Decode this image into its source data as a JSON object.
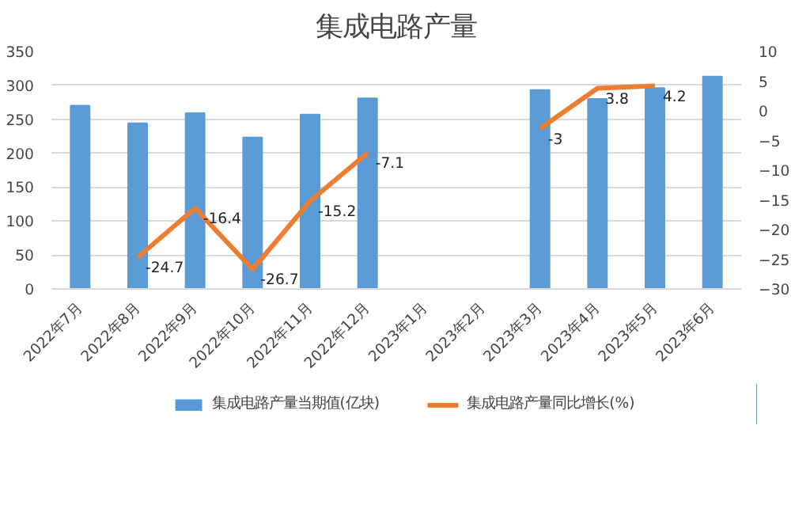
{
  "chart_data": {
    "type": "bar",
    "title": "集成电路产量",
    "categories": [
      "2022年7月",
      "2022年8月",
      "2022年9月",
      "2022年10月",
      "2022年11月",
      "2022年12月",
      "2023年1月",
      "2023年2月",
      "2023年3月",
      "2023年4月",
      "2023年5月",
      "2023年6月"
    ],
    "series": [
      {
        "name": "集成电路产量当期值(亿块)",
        "color": "#5b9bd5",
        "values": [
          270,
          244,
          259,
          223,
          257,
          281,
          null,
          null,
          293,
          280,
          296,
          313
        ]
      },
      {
        "name": "集成电路产量同比增长(%)",
        "type": "line",
        "axis": "y2",
        "color": "#ed7d31",
        "values": [
          null,
          -24.7,
          -16.4,
          -26.7,
          -15.2,
          -7.1,
          null,
          null,
          -3,
          3.8,
          4.2,
          null
        ],
        "value_labels": [
          null,
          "-24.7",
          "-16.4",
          "-26.7",
          "-15.2",
          "-7.1",
          null,
          null,
          "-3",
          "3.8",
          "4.2",
          null
        ]
      }
    ],
    "ylim": [
      0,
      350
    ],
    "yticks": [
      0,
      50,
      100,
      150,
      200,
      250,
      300,
      350
    ],
    "y2lim": [
      -30,
      10
    ],
    "y2ticks": [
      -30,
      -25,
      -20,
      -15,
      -10,
      -5,
      0,
      5,
      10
    ],
    "grid": "y",
    "legend": "bottom"
  }
}
